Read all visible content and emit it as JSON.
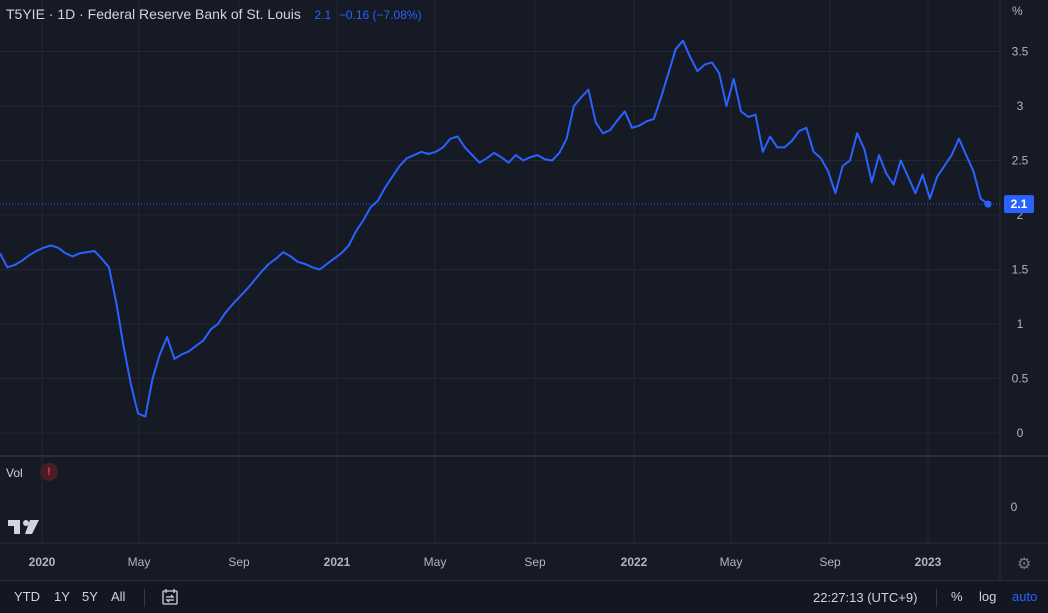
{
  "legend": {
    "symbol": "T5YIE · 1D · Federal Reserve Bank of St. Louis",
    "last": "2.1",
    "change": "−0.16 (−7.08%)"
  },
  "price_scale_unit": "%",
  "vol_label": "Vol",
  "vol_warning": "!",
  "price_badge": "2.1",
  "vol_axis_label": "0",
  "bottom_bar": {
    "ranges": [
      "YTD",
      "1Y",
      "5Y",
      "All"
    ],
    "time": "22:27:13 (UTC+9)",
    "percent": "%",
    "log": "log",
    "auto": "auto"
  },
  "colors": {
    "background": "#161a25",
    "line": "#2962ff",
    "grid": "#232733",
    "text": "#b2b5be"
  },
  "icons": [
    "compare-icon",
    "gear-icon",
    "tradingview-logo-icon",
    "warning-icon"
  ],
  "chart_data": {
    "type": "line",
    "title": "T5YIE · 1D · Federal Reserve Bank of St. Louis",
    "xlabel": "",
    "ylabel": "",
    "ylim": [
      -0.1,
      3.8
    ],
    "x_tick_labels": [
      "2020",
      "May",
      "Sep",
      "2021",
      "May",
      "Sep",
      "2022",
      "May",
      "Sep",
      "2023"
    ],
    "y_ticks": [
      0,
      0.5,
      1,
      1.5,
      2,
      2.5,
      3,
      3.5
    ],
    "grid": true,
    "last_value": 2.1,
    "series": [
      {
        "values": [
          1.65,
          1.52,
          1.54,
          1.58,
          1.63,
          1.67,
          1.7,
          1.72,
          1.7,
          1.65,
          1.62,
          1.65,
          1.66,
          1.67,
          1.6,
          1.52,
          1.2,
          0.8,
          0.45,
          0.18,
          0.15,
          0.5,
          0.72,
          0.88,
          0.68,
          0.72,
          0.75,
          0.8,
          0.85,
          0.95,
          1.0,
          1.1,
          1.18,
          1.25,
          1.32,
          1.4,
          1.48,
          1.55,
          1.6,
          1.66,
          1.62,
          1.57,
          1.55,
          1.52,
          1.5,
          1.55,
          1.6,
          1.65,
          1.72,
          1.85,
          1.95,
          2.07,
          2.13,
          2.25,
          2.35,
          2.45,
          2.52,
          2.55,
          2.58,
          2.56,
          2.58,
          2.62,
          2.7,
          2.72,
          2.62,
          2.55,
          2.48,
          2.52,
          2.57,
          2.53,
          2.48,
          2.55,
          2.5,
          2.53,
          2.55,
          2.51,
          2.5,
          2.57,
          2.7,
          3.0,
          3.08,
          3.15,
          2.85,
          2.75,
          2.78,
          2.87,
          2.95,
          2.8,
          2.82,
          2.86,
          2.88,
          3.08,
          3.3,
          3.52,
          3.6,
          3.45,
          3.32,
          3.38,
          3.4,
          3.3,
          3.0,
          3.25,
          2.95,
          2.9,
          2.92,
          2.58,
          2.72,
          2.62,
          2.62,
          2.68,
          2.77,
          2.8,
          2.58,
          2.52,
          2.4,
          2.2,
          2.45,
          2.5,
          2.75,
          2.6,
          2.3,
          2.55,
          2.38,
          2.28,
          2.5,
          2.35,
          2.2,
          2.37,
          2.15,
          2.35,
          2.45,
          2.55,
          2.7,
          2.55,
          2.4,
          2.15,
          2.1
        ]
      }
    ]
  }
}
